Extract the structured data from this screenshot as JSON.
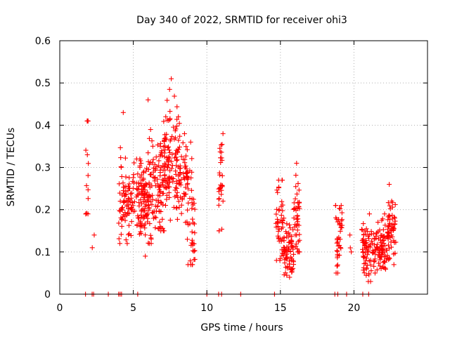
{
  "chart_data": {
    "type": "scatter",
    "title": "Day 340 of 2022, SRMTID for receiver ohi3",
    "xlabel": "GPS time / hours",
    "ylabel": "SRMTID / TECUs",
    "xlim": [
      0,
      25
    ],
    "ylim": [
      0,
      0.6
    ],
    "xticks": [
      0,
      5,
      10,
      15,
      20
    ],
    "xtick_labels": [
      "0",
      "5",
      "10",
      "15",
      "20"
    ],
    "yticks": [
      0,
      0.1,
      0.2,
      0.3,
      0.4,
      0.5,
      0.6
    ],
    "ytick_labels": [
      "0",
      "0.1",
      "0.2",
      "0.3",
      "0.4",
      "0.5",
      "0.6"
    ],
    "grid": true,
    "marker": "plus",
    "series_color": "#ff0000",
    "series": [
      {
        "name": "SRMTID",
        "clusters": [
          {
            "x_range": [
              1.75,
              1.95
            ],
            "y_mean": 0.27,
            "y_spread": 0.08,
            "y_min": 0.19,
            "y_max": 0.41,
            "n": 14
          },
          {
            "x_range": [
              2.2,
              2.35
            ],
            "y_mean": 0.13,
            "y_spread": 0.01,
            "y_min": 0.11,
            "y_max": 0.14,
            "n": 2
          },
          {
            "x_range": [
              4.0,
              5.1
            ],
            "y_mean": 0.22,
            "y_spread": 0.05,
            "y_min": 0.12,
            "y_max": 0.43,
            "n": 90
          },
          {
            "x_range": [
              5.2,
              6.0
            ],
            "y_mean": 0.22,
            "y_spread": 0.04,
            "y_min": 0.09,
            "y_max": 0.32,
            "n": 100
          },
          {
            "x_range": [
              6.0,
              7.0
            ],
            "y_mean": 0.25,
            "y_spread": 0.06,
            "y_min": 0.12,
            "y_max": 0.46,
            "n": 110
          },
          {
            "x_range": [
              7.0,
              8.0
            ],
            "y_mean": 0.31,
            "y_spread": 0.07,
            "y_min": 0.15,
            "y_max": 0.51,
            "n": 120
          },
          {
            "x_range": [
              8.0,
              8.7
            ],
            "y_mean": 0.28,
            "y_spread": 0.05,
            "y_min": 0.13,
            "y_max": 0.42,
            "n": 70
          },
          {
            "x_range": [
              8.7,
              9.2
            ],
            "y_mean": 0.17,
            "y_spread": 0.07,
            "y_min": 0.07,
            "y_max": 0.36,
            "n": 40
          },
          {
            "x_range": [
              10.8,
              11.1
            ],
            "y_mean": 0.27,
            "y_spread": 0.07,
            "y_min": 0.15,
            "y_max": 0.38,
            "n": 30
          },
          {
            "x_range": [
              14.7,
              15.2
            ],
            "y_mean": 0.17,
            "y_spread": 0.05,
            "y_min": 0.08,
            "y_max": 0.27,
            "n": 45
          },
          {
            "x_range": [
              15.2,
              15.9
            ],
            "y_mean": 0.1,
            "y_spread": 0.03,
            "y_min": 0.04,
            "y_max": 0.18,
            "n": 75
          },
          {
            "x_range": [
              15.9,
              16.3
            ],
            "y_mean": 0.2,
            "y_spread": 0.05,
            "y_min": 0.1,
            "y_max": 0.31,
            "n": 45
          },
          {
            "x_range": [
              18.7,
              19.2
            ],
            "y_mean": 0.13,
            "y_spread": 0.04,
            "y_min": 0.05,
            "y_max": 0.21,
            "n": 40
          },
          {
            "x_range": [
              19.7,
              19.85
            ],
            "y_mean": 0.12,
            "y_spread": 0.01,
            "y_min": 0.1,
            "y_max": 0.14,
            "n": 3
          },
          {
            "x_range": [
              20.5,
              21.3
            ],
            "y_mean": 0.11,
            "y_spread": 0.03,
            "y_min": 0.03,
            "y_max": 0.19,
            "n": 70
          },
          {
            "x_range": [
              21.3,
              22.3
            ],
            "y_mean": 0.11,
            "y_spread": 0.03,
            "y_min": 0.05,
            "y_max": 0.19,
            "n": 90
          },
          {
            "x_range": [
              22.3,
              22.85
            ],
            "y_mean": 0.15,
            "y_spread": 0.04,
            "y_min": 0.07,
            "y_max": 0.26,
            "n": 60
          }
        ],
        "zero_points_x": [
          1.75,
          2.2,
          2.3,
          3.3,
          4.0,
          4.1,
          4.2,
          5.3,
          10.0,
          10.8,
          11.0,
          12.3,
          14.6,
          18.7,
          18.9,
          19.5,
          20.6,
          21.0
        ]
      }
    ]
  }
}
